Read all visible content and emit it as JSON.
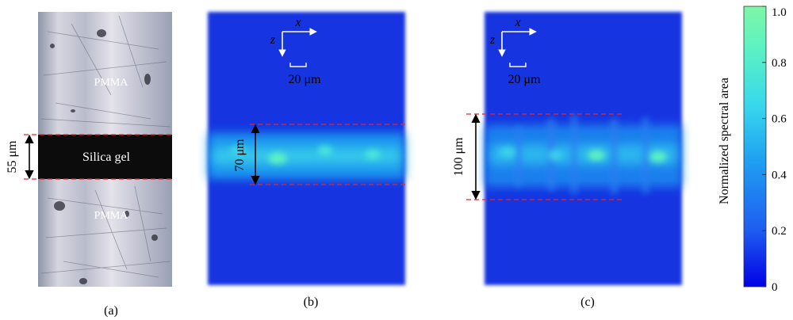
{
  "panel_a": {
    "label": "(a)",
    "top_material": "PMMA",
    "middle_material": "Silica gel",
    "bottom_material": "PMMA",
    "thickness": "55 μm"
  },
  "panel_b": {
    "label": "(b)",
    "axis_x": "x",
    "axis_z": "z",
    "scale_bar": "20 μm",
    "thickness": "70 μm"
  },
  "panel_c": {
    "label": "(c)",
    "axis_x": "x",
    "axis_z": "z",
    "scale_bar": "20 μm",
    "thickness": "100 μm"
  },
  "colorbar": {
    "title": "Normalized spectral area",
    "ticks": [
      "1.0",
      "0.8",
      "0.6",
      "0.4",
      "0.2",
      "0"
    ],
    "tick_values": [
      1.0,
      0.8,
      0.6,
      0.4,
      0.2,
      0
    ],
    "range": [
      0,
      1
    ],
    "colors": [
      "#0000e6",
      "#1f5cf0",
      "#1fa0f2",
      "#38d8ec",
      "#5df2c2",
      "#7ef7a6"
    ]
  },
  "colors": {
    "map_background": "#1436e0",
    "dashed_line": "#e8262b",
    "arrow": "#000000",
    "gel_band": "#0c0c0c"
  }
}
